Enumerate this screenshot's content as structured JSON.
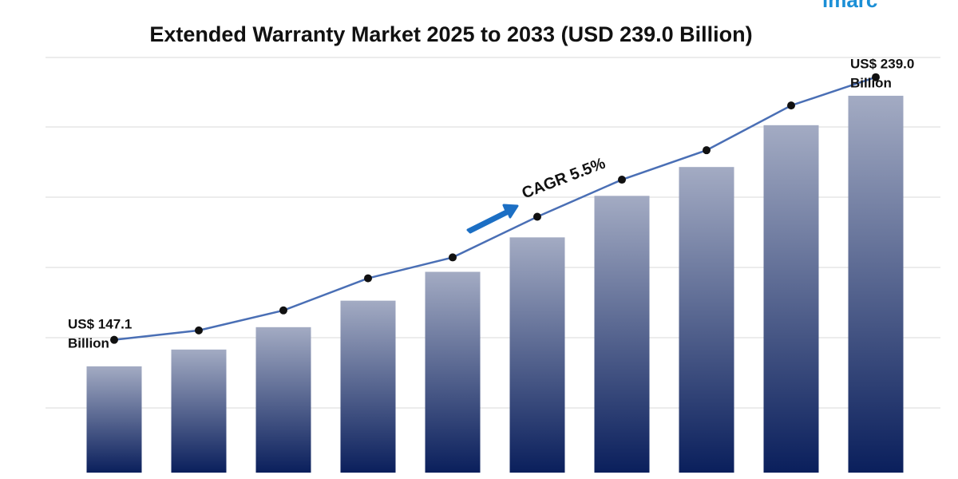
{
  "chart_data": {
    "type": "bar",
    "title": "Extended Warranty Market 2025 to 2033 (USD 239.0 Billion)",
    "logo": "imarc",
    "annotation": "CAGR 5.5%",
    "categories": [
      null,
      null,
      null,
      null,
      null,
      null,
      null,
      null,
      null,
      null
    ],
    "series": [
      {
        "color": "#0a1f5c",
        "values": [
          147.1,
          152.8,
          160.4,
          169.4,
          179.2,
          190.9,
          205.0,
          214.8,
          229.0,
          239.0
        ],
        "value_labels": [
          "US$ 147.1 Billion",
          null,
          null,
          null,
          null,
          null,
          null,
          null,
          null,
          "US$ 239.0 Billion"
        ]
      },
      {
        "type": "line",
        "color": "#4a6fb5",
        "values": [
          156.1,
          159.3,
          166.1,
          177.0,
          184.1,
          197.9,
          210.5,
          220.5,
          235.7,
          245.3
        ]
      }
    ],
    "ylim": [
      111,
      252
    ],
    "grid": true
  }
}
